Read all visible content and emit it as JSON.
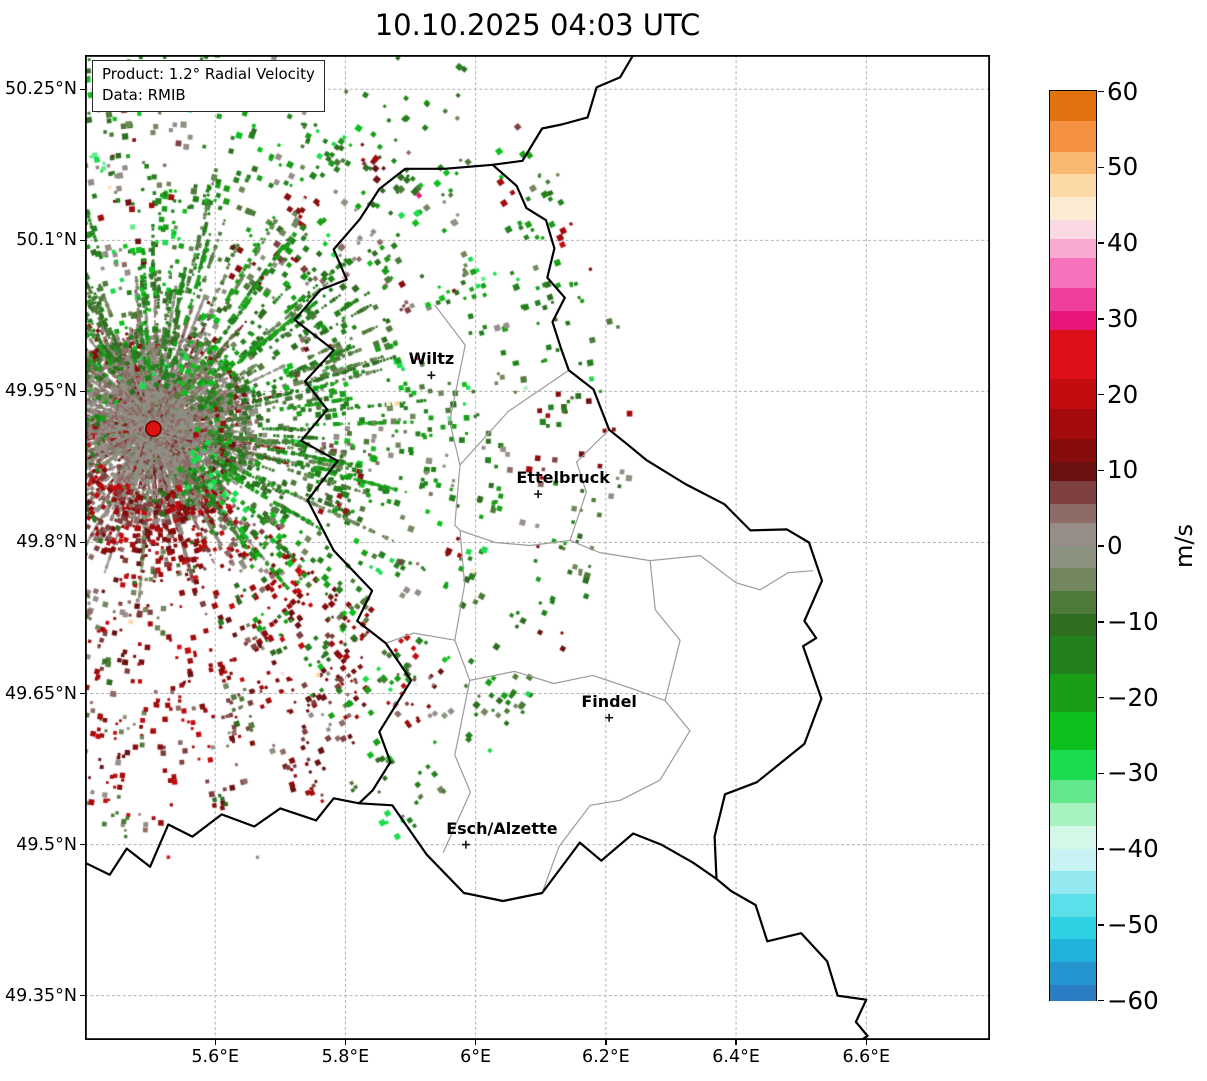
{
  "product_box": {
    "line1": "Product: 1.2° Radial Velocity",
    "line2": "Data: RMIB"
  },
  "chart_data": {
    "type": "heatmap",
    "title": "10.10.2025 04:03 UTC",
    "product": "1.2° Radial Velocity",
    "data_source": "RMIB",
    "units": "m/s",
    "value_range": [
      -60,
      60
    ],
    "grid": true,
    "legend_position": "right-colorbar",
    "axes": {
      "lon_range": [
        5.4,
        6.79
      ],
      "lat_range": [
        49.306,
        50.284
      ],
      "x_ticks": [
        {
          "value": 5.6,
          "label": "5.6°E"
        },
        {
          "value": 5.8,
          "label": "5.8°E"
        },
        {
          "value": 6.0,
          "label": "6°E"
        },
        {
          "value": 6.2,
          "label": "6.2°E"
        },
        {
          "value": 6.4,
          "label": "6.4°E"
        },
        {
          "value": 6.6,
          "label": "6.6°E"
        }
      ],
      "y_ticks": [
        {
          "value": 50.25,
          "label": "50.25°N"
        },
        {
          "value": 50.1,
          "label": "50.1°N"
        },
        {
          "value": 49.95,
          "label": "49.95°N"
        },
        {
          "value": 49.8,
          "label": "49.8°N"
        },
        {
          "value": 49.65,
          "label": "49.65°N"
        },
        {
          "value": 49.5,
          "label": "49.5°N"
        },
        {
          "value": 49.35,
          "label": "49.35°N"
        }
      ]
    },
    "colorbar": {
      "unit_label": "m/s",
      "ticks": [
        {
          "value": 60,
          "label": "60"
        },
        {
          "value": 50,
          "label": "50"
        },
        {
          "value": 40,
          "label": "40"
        },
        {
          "value": 30,
          "label": "30"
        },
        {
          "value": 20,
          "label": "20"
        },
        {
          "value": 10,
          "label": "10"
        },
        {
          "value": 0,
          "label": "0"
        },
        {
          "value": -10,
          "label": "−10"
        },
        {
          "value": -20,
          "label": "−20"
        },
        {
          "value": -30,
          "label": "−30"
        },
        {
          "value": -40,
          "label": "−40"
        },
        {
          "value": -50,
          "label": "−50"
        },
        {
          "value": -60,
          "label": "−60"
        }
      ],
      "bands": [
        [
          60,
          56,
          "#e1720f"
        ],
        [
          56,
          52,
          "#f59140"
        ],
        [
          52,
          49,
          "#fbb871"
        ],
        [
          49,
          46,
          "#fdd9a8"
        ],
        [
          46,
          43,
          "#fcecd4"
        ],
        [
          43,
          40.5,
          "#fbd9e3"
        ],
        [
          40.5,
          38,
          "#faa9d2"
        ],
        [
          38,
          34,
          "#f672ba"
        ],
        [
          34,
          31,
          "#ef3f9d"
        ],
        [
          31,
          28.5,
          "#e9177a"
        ],
        [
          28.5,
          22,
          "#dd0f19"
        ],
        [
          22,
          18,
          "#c30c10"
        ],
        [
          18,
          14,
          "#a30a0c"
        ],
        [
          14,
          11,
          "#870d0d"
        ],
        [
          11,
          8.5,
          "#6b1111"
        ],
        [
          8.5,
          5.5,
          "#7e4040"
        ],
        [
          5.5,
          3,
          "#8f6b68"
        ],
        [
          3,
          0,
          "#968d89"
        ],
        [
          0,
          -3,
          "#8b9280"
        ],
        [
          -3,
          -6,
          "#73875e"
        ],
        [
          -6,
          -9,
          "#4e7a3a"
        ],
        [
          -9,
          -12,
          "#2f6e20"
        ],
        [
          -12,
          -17,
          "#23811d"
        ],
        [
          -17,
          -22,
          "#189f17"
        ],
        [
          -22,
          -27,
          "#0dc01d"
        ],
        [
          -27,
          -31,
          "#1bdc4e"
        ],
        [
          -31,
          -34,
          "#64e88d"
        ],
        [
          -34,
          -37,
          "#a8f1c1"
        ],
        [
          -37,
          -40,
          "#d4f7e8"
        ],
        [
          -40,
          -43,
          "#c7f3f4"
        ],
        [
          -43,
          -46,
          "#93e9ef"
        ],
        [
          -46,
          -49,
          "#5bdfe9"
        ],
        [
          -49,
          -52,
          "#2ed0e4"
        ],
        [
          -52,
          -55,
          "#21b3db"
        ],
        [
          -55,
          -58,
          "#2495ce"
        ],
        [
          -58,
          -60,
          "#2b7ec1"
        ]
      ]
    },
    "radar_site": {
      "lon": 5.505,
      "lat": 49.913,
      "color": "#dd1111"
    },
    "cities": [
      {
        "name": "Wiltz",
        "lon": 5.932,
        "lat": 49.966,
        "label_dx": 0
      },
      {
        "name": "Ettelbruck",
        "lon": 6.096,
        "lat": 49.848,
        "label_dx": 25
      },
      {
        "name": "Findel",
        "lon": 6.205,
        "lat": 49.626,
        "label_dx": 0
      },
      {
        "name": "Esch/Alzette",
        "lon": 5.985,
        "lat": 49.5,
        "label_dx": 36
      }
    ],
    "borders": {
      "country": [
        [
          6.026,
          50.175
        ],
        [
          6.063,
          50.154
        ],
        [
          6.078,
          50.132
        ],
        [
          6.108,
          50.12
        ],
        [
          6.121,
          50.092
        ],
        [
          6.11,
          50.063
        ],
        [
          6.137,
          50.043
        ],
        [
          6.118,
          50.019
        ],
        [
          6.131,
          49.993
        ],
        [
          6.143,
          49.971
        ],
        [
          6.181,
          49.952
        ],
        [
          6.205,
          49.912
        ],
        [
          6.232,
          49.898
        ],
        [
          6.262,
          49.882
        ],
        [
          6.322,
          49.858
        ],
        [
          6.382,
          49.838
        ],
        [
          6.422,
          49.812
        ],
        [
          6.478,
          49.813
        ],
        [
          6.512,
          49.8
        ],
        [
          6.532,
          49.762
        ],
        [
          6.505,
          49.722
        ],
        [
          6.523,
          49.705
        ],
        [
          6.503,
          49.697
        ],
        [
          6.531,
          49.645
        ],
        [
          6.505,
          49.6
        ],
        [
          6.432,
          49.562
        ],
        [
          6.383,
          49.55
        ],
        [
          6.367,
          49.508
        ],
        [
          6.37,
          49.466
        ],
        [
          6.334,
          49.482
        ],
        [
          6.285,
          49.5
        ],
        [
          6.242,
          49.511
        ],
        [
          6.193,
          49.484
        ],
        [
          6.16,
          49.502
        ],
        [
          6.102,
          49.452
        ],
        [
          6.042,
          49.444
        ],
        [
          5.982,
          49.452
        ],
        [
          5.925,
          49.49
        ],
        [
          5.872,
          49.539
        ],
        [
          5.821,
          49.541
        ],
        [
          5.842,
          49.554
        ],
        [
          5.869,
          49.582
        ],
        [
          5.852,
          49.612
        ],
        [
          5.901,
          49.663
        ],
        [
          5.862,
          49.7
        ],
        [
          5.818,
          49.722
        ],
        [
          5.841,
          49.752
        ],
        [
          5.782,
          49.792
        ],
        [
          5.742,
          49.842
        ],
        [
          5.788,
          49.881
        ],
        [
          5.732,
          49.901
        ],
        [
          5.772,
          49.932
        ],
        [
          5.738,
          49.96
        ],
        [
          5.782,
          49.991
        ],
        [
          5.722,
          50.021
        ],
        [
          5.762,
          50.051
        ],
        [
          5.802,
          50.061
        ],
        [
          5.782,
          50.091
        ],
        [
          5.822,
          50.121
        ],
        [
          5.852,
          50.151
        ],
        [
          5.892,
          50.171
        ],
        [
          5.952,
          50.171
        ],
        [
          6.026,
          50.175
        ]
      ],
      "neighbors": [
        [
          [
            6.026,
            50.175
          ],
          [
            6.072,
            50.179
          ],
          [
            6.102,
            50.211
          ],
          [
            6.132,
            50.215
          ],
          [
            6.172,
            50.222
          ],
          [
            6.186,
            50.252
          ],
          [
            6.222,
            50.262
          ],
          [
            6.242,
            50.284
          ]
        ],
        [
          [
            5.821,
            49.541
          ],
          [
            5.782,
            49.546
          ],
          [
            5.755,
            49.524
          ],
          [
            5.7,
            49.536
          ],
          [
            5.66,
            49.518
          ],
          [
            5.61,
            49.53
          ],
          [
            5.565,
            49.508
          ],
          [
            5.528,
            49.52
          ],
          [
            5.5,
            49.478
          ],
          [
            5.464,
            49.496
          ],
          [
            5.438,
            49.47
          ],
          [
            5.4,
            49.482
          ]
        ],
        [
          [
            6.37,
            49.466
          ],
          [
            6.392,
            49.454
          ],
          [
            6.43,
            49.44
          ],
          [
            6.448,
            49.404
          ],
          [
            6.5,
            49.412
          ],
          [
            6.54,
            49.384
          ],
          [
            6.556,
            49.35
          ],
          [
            6.6,
            49.346
          ],
          [
            6.584,
            49.324
          ],
          [
            6.602,
            49.31
          ],
          [
            6.592,
            49.306
          ]
        ]
      ],
      "cantons": [
        [
          [
            5.937,
            50.036
          ],
          [
            5.984,
            49.996
          ],
          [
            5.96,
            49.92
          ],
          [
            5.976,
            49.877
          ],
          [
            5.968,
            49.817
          ],
          [
            5.976,
            49.812
          ],
          [
            5.983,
            49.758
          ],
          [
            5.968,
            49.703
          ],
          [
            5.991,
            49.663
          ],
          [
            5.968,
            49.589
          ],
          [
            5.992,
            49.552
          ],
          [
            5.95,
            49.492
          ]
        ],
        [
          [
            6.143,
            49.971
          ],
          [
            6.05,
            49.93
          ],
          [
            5.976,
            49.877
          ]
        ],
        [
          [
            5.976,
            49.812
          ],
          [
            6.03,
            49.8
          ],
          [
            6.084,
            49.797
          ],
          [
            6.145,
            49.802
          ],
          [
            6.19,
            49.79
          ],
          [
            6.268,
            49.782
          ]
        ],
        [
          [
            6.268,
            49.782
          ],
          [
            6.345,
            49.787
          ],
          [
            6.4,
            49.76
          ],
          [
            6.437,
            49.753
          ],
          [
            6.48,
            49.77
          ],
          [
            6.518,
            49.772
          ]
        ],
        [
          [
            6.268,
            49.782
          ],
          [
            6.276,
            49.733
          ],
          [
            6.314,
            49.703
          ],
          [
            6.291,
            49.643
          ],
          [
            6.329,
            49.613
          ],
          [
            6.283,
            49.564
          ],
          [
            6.222,
            49.544
          ],
          [
            6.176,
            49.539
          ],
          [
            6.128,
            49.498
          ],
          [
            6.102,
            49.452
          ]
        ],
        [
          [
            5.991,
            49.663
          ],
          [
            6.06,
            49.672
          ],
          [
            6.12,
            49.66
          ],
          [
            6.18,
            49.668
          ],
          [
            6.24,
            49.655
          ],
          [
            6.291,
            49.643
          ]
        ],
        [
          [
            5.968,
            49.703
          ],
          [
            5.905,
            49.71
          ],
          [
            5.862,
            49.7
          ]
        ],
        [
          [
            6.145,
            49.802
          ],
          [
            6.17,
            49.85
          ],
          [
            6.155,
            49.88
          ],
          [
            6.205,
            49.912
          ]
        ]
      ]
    },
    "echo_field": {
      "seed": 20251010,
      "core": {
        "dots": 2800,
        "radius": 100,
        "streaks": 430,
        "streak_max_len": 150
      },
      "red_sector": {
        "clusters": 680,
        "angle_start_deg": 40,
        "angle_end_deg": 192,
        "r_min": 70,
        "r_max": 400
      },
      "green_field": {
        "clusters": 830,
        "r_min": 55,
        "r_max": 470
      },
      "green_streaks": 150,
      "outliers": 55
    }
  }
}
